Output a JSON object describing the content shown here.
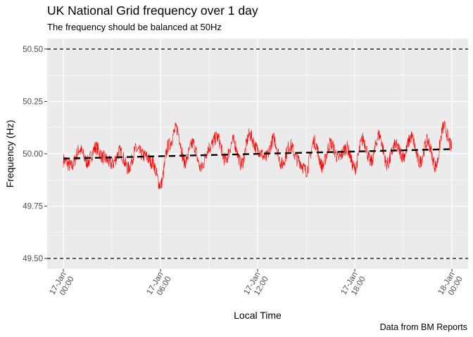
{
  "chart_data": {
    "type": "line",
    "title": "UK National Grid frequency over 1 day",
    "subtitle": "The frequency should be balanced at 50Hz",
    "xlabel": "Local Time",
    "ylabel": "Frequency (Hz)",
    "caption": "Data from BM Reports",
    "ylim": [
      49.45,
      50.55
    ],
    "xlim_hours": [
      -1,
      25
    ],
    "y_ticks": [
      {
        "value": 49.5,
        "label": "49.50"
      },
      {
        "value": 49.75,
        "label": "49.75"
      },
      {
        "value": 50.0,
        "label": "50.00"
      },
      {
        "value": 50.25,
        "label": "50.25"
      },
      {
        "value": 50.5,
        "label": "50.50"
      }
    ],
    "x_ticks": [
      {
        "hour": 0,
        "label": [
          "17-Jan",
          "00:00"
        ]
      },
      {
        "hour": 6,
        "label": [
          "17-Jan",
          "06:00"
        ]
      },
      {
        "hour": 12,
        "label": [
          "17-Jan",
          "12:00"
        ]
      },
      {
        "hour": 18,
        "label": [
          "17-Jan",
          "18:00"
        ]
      },
      {
        "hour": 24,
        "label": [
          "18-Jan",
          "00:00"
        ]
      }
    ],
    "reference_lines": [
      49.5,
      50.5
    ],
    "trend": {
      "hour_start": 0,
      "hour_end": 24,
      "value_start": 49.977,
      "value_end": 50.022,
      "color": "#000000",
      "style": "dashed"
    },
    "series": [
      {
        "color": "#ff0000",
        "x_hours": [
          0,
          0.5,
          1,
          1.5,
          2,
          2.5,
          3,
          3.5,
          4,
          4.5,
          5,
          5.5,
          6,
          6.5,
          7,
          7.5,
          8,
          8.5,
          9,
          9.5,
          10,
          10.5,
          11,
          11.5,
          12,
          12.5,
          13,
          13.5,
          14,
          14.5,
          15,
          15.5,
          16,
          16.5,
          17,
          17.5,
          18,
          18.5,
          19,
          19.5,
          20,
          20.5,
          21,
          21.5,
          22,
          22.5,
          23,
          23.5,
          24
        ],
        "y_hz": [
          49.97,
          49.94,
          50.02,
          49.96,
          50.03,
          49.98,
          49.95,
          50.01,
          49.93,
          50.02,
          49.99,
          49.96,
          49.85,
          50.04,
          50.12,
          49.96,
          50.05,
          49.93,
          50.03,
          50.08,
          49.97,
          50.06,
          49.95,
          50.09,
          50.02,
          49.98,
          50.07,
          49.95,
          50.04,
          49.97,
          49.92,
          50.06,
          49.94,
          50.05,
          49.98,
          50.03,
          49.93,
          50.07,
          49.96,
          50.09,
          49.95,
          50.04,
          49.99,
          50.08,
          49.96,
          50.06,
          49.94,
          50.13,
          50.03
        ]
      }
    ],
    "grid": true,
    "panel_background": "#ebebeb",
    "grid_color": "#ffffff"
  }
}
